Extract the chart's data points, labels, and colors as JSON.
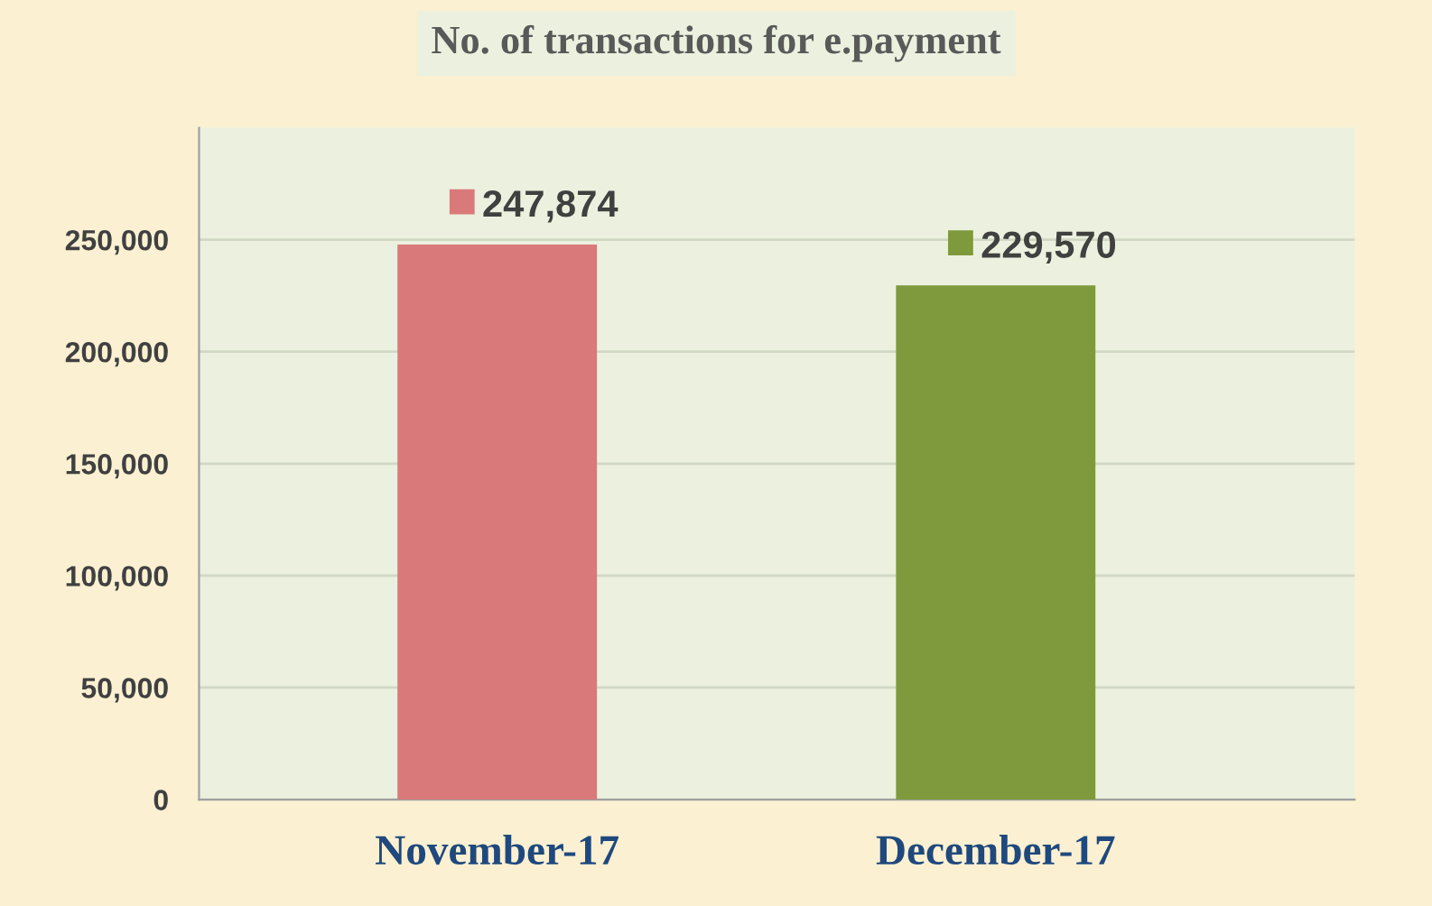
{
  "chart_data": {
    "type": "bar",
    "title": "No. of transactions for e.payment",
    "categories": [
      "November-17",
      "December-17"
    ],
    "values": [
      247874,
      229570
    ],
    "colors": [
      "#d9797a",
      "#7e9a3c"
    ],
    "value_labels": [
      "247,874",
      "229,570"
    ],
    "ylim": [
      0,
      300000
    ],
    "yticks": [
      0,
      {
        "value": 50000,
        "label": "50,000"
      },
      {
        "value": 100000,
        "label": "100,000"
      },
      {
        "value": 150000,
        "label": "150,000"
      },
      {
        "value": 200000,
        "label": "200,000"
      },
      {
        "value": 250000,
        "label": "250,000"
      }
    ],
    "grid": "y",
    "legend": false
  }
}
